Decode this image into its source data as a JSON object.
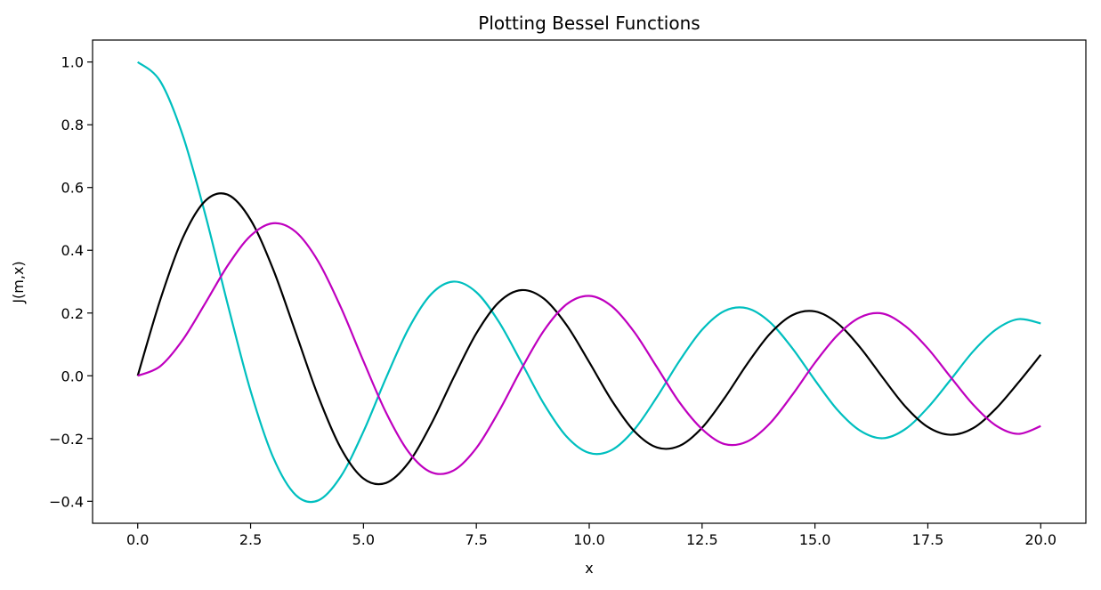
{
  "chart_data": {
    "type": "line",
    "title": "Plotting Bessel Functions",
    "xlabel": "x",
    "ylabel": "J(m,x)",
    "xlim": [
      -1.0,
      21.0
    ],
    "ylim": [
      -0.47,
      1.07
    ],
    "x_ticks": [
      0.0,
      2.5,
      5.0,
      7.5,
      10.0,
      12.5,
      15.0,
      17.5,
      20.0
    ],
    "x_tick_labels": [
      "0.0",
      "2.5",
      "5.0",
      "7.5",
      "10.0",
      "12.5",
      "15.0",
      "17.5",
      "20.0"
    ],
    "y_ticks": [
      -0.4,
      -0.2,
      0.0,
      0.2,
      0.4,
      0.6,
      0.8,
      1.0
    ],
    "y_tick_labels": [
      "−0.4",
      "−0.2",
      "0.0",
      "0.2",
      "0.4",
      "0.6",
      "0.8",
      "1.0"
    ],
    "grid": false,
    "legend": "none",
    "x": [
      0.0,
      0.5,
      1.0,
      1.5,
      2.0,
      2.5,
      3.0,
      3.5,
      4.0,
      4.5,
      5.0,
      5.5,
      6.0,
      6.5,
      7.0,
      7.5,
      8.0,
      8.5,
      9.0,
      9.5,
      10.0,
      10.5,
      11.0,
      11.5,
      12.0,
      12.5,
      13.0,
      13.5,
      14.0,
      14.5,
      15.0,
      15.5,
      16.0,
      16.5,
      17.0,
      17.5,
      18.0,
      18.5,
      19.0,
      19.5,
      20.0
    ],
    "series": [
      {
        "color": "#00bfbf",
        "values": [
          1.0,
          0.9385,
          0.7652,
          0.5118,
          0.2239,
          -0.0484,
          -0.2601,
          -0.3801,
          -0.3971,
          -0.3205,
          -0.1776,
          -0.0068,
          0.1506,
          0.2601,
          0.3001,
          0.2663,
          0.1717,
          0.0419,
          -0.0903,
          -0.1939,
          -0.2459,
          -0.2366,
          -0.1712,
          -0.0677,
          0.0477,
          0.1469,
          0.2069,
          0.215,
          0.1711,
          0.0875,
          -0.0142,
          -0.1092,
          -0.1749,
          -0.199,
          -0.1699,
          -0.1014,
          -0.0134,
          0.0772,
          0.1466,
          0.1804,
          0.167
        ]
      },
      {
        "color": "#000000",
        "values": [
          0.0,
          0.2423,
          0.4401,
          0.5579,
          0.5767,
          0.4971,
          0.3391,
          0.1374,
          -0.066,
          -0.2311,
          -0.3276,
          -0.3414,
          -0.2767,
          -0.1538,
          -0.0047,
          0.1352,
          0.2346,
          0.2731,
          0.2453,
          0.1613,
          0.0435,
          -0.0789,
          -0.1768,
          -0.2284,
          -0.2234,
          -0.1655,
          -0.0703,
          0.038,
          0.1334,
          0.1934,
          0.2051,
          0.1672,
          0.0904,
          -0.0056,
          -0.0977,
          -0.1633,
          -0.188,
          -0.1672,
          -0.1057,
          -0.0225,
          0.0668
        ]
      },
      {
        "color": "#bf00bf",
        "values": [
          0.0,
          0.0306,
          0.1149,
          0.2321,
          0.3528,
          0.4461,
          0.4861,
          0.4586,
          0.3641,
          0.2178,
          0.0466,
          -0.1173,
          -0.2429,
          -0.3074,
          -0.3014,
          -0.2303,
          -0.113,
          0.0223,
          0.1448,
          0.2279,
          0.2546,
          0.2216,
          0.139,
          0.0273,
          -0.0849,
          -0.1701,
          -0.2177,
          -0.2094,
          -0.152,
          -0.0603,
          0.0416,
          0.1296,
          0.1862,
          0.1983,
          0.1584,
          0.0871,
          -0.0033,
          -0.0915,
          -0.1578,
          -0.1852,
          -0.1603
        ]
      }
    ]
  }
}
